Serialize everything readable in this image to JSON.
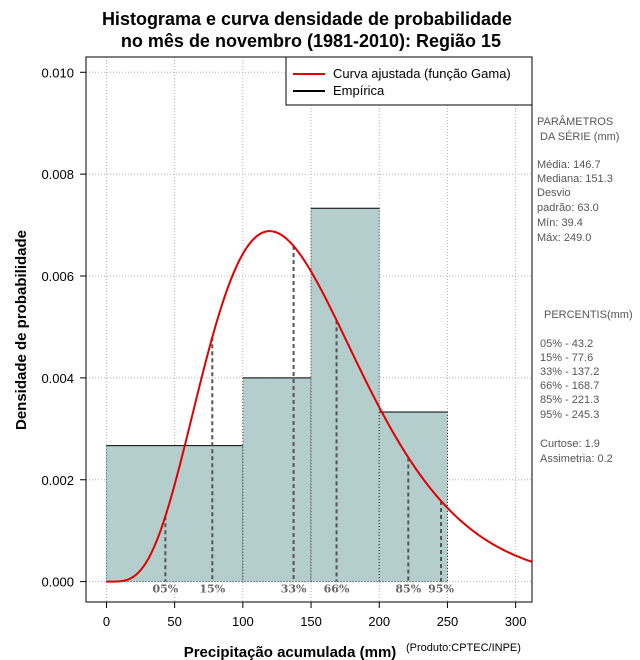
{
  "chart_data": {
    "type": "bar",
    "title_line1": "Histograma e curva densidade de probabilidade",
    "title_line2": "no mês de novembro (1981-2010): Região 15",
    "xlabel": "Precipitação acumulada (mm)",
    "ylabel": "Densidade de probabilidade",
    "credit": "(Produto:CPTEC/INPE)",
    "xlim": [
      -15,
      312
    ],
    "ylim": [
      -0.0004,
      0.0103
    ],
    "x_ticks": [
      0,
      50,
      100,
      150,
      200,
      250,
      300
    ],
    "y_ticks": [
      0.0,
      0.002,
      0.004,
      0.006,
      0.008,
      0.01
    ],
    "y_tick_labels": [
      "0.000",
      "0.002",
      "0.004",
      "0.006",
      "0.008",
      "0.010"
    ],
    "grid": true,
    "bins": [
      {
        "start": 0,
        "end": 100,
        "density": 0.00267
      },
      {
        "start": 100,
        "end": 150,
        "density": 0.004
      },
      {
        "start": 150,
        "end": 200,
        "density": 0.00733
      },
      {
        "start": 200,
        "end": 250,
        "density": 0.00333
      }
    ],
    "gamma_fit": {
      "mean": 146.7,
      "sd": 63.0
    },
    "percentile_lines": [
      {
        "label": "05%",
        "value": 43.2
      },
      {
        "label": "15%",
        "value": 77.6
      },
      {
        "label": "33%",
        "value": 137.2
      },
      {
        "label": "66%",
        "value": 168.7
      },
      {
        "label": "85%",
        "value": 221.3
      },
      {
        "label": "95%",
        "value": 245.3
      }
    ],
    "legend": [
      {
        "label": "Curva ajustada (função Gama)",
        "color": "#e00000"
      },
      {
        "label": "Empírica",
        "color": "#000000"
      }
    ],
    "legend_position": "top-right",
    "colors": {
      "bar_fill": "#b4cdcd",
      "curve": "#e00000",
      "grid": "#b0b0b0",
      "percentile": "#555555"
    }
  },
  "side_panel": {
    "params_title_1": "PARÂMETROS",
    "params_title_2": "DA SÉRIE (mm)",
    "media": "Média:  146.7",
    "mediana": "Mediana:  151.3",
    "desvio_1": "Desvio",
    "desvio_2": "padrão:  63.0",
    "min": "Mín:  39.4",
    "max": "Máx:  249.0",
    "percentis_title": "PERCENTIS(mm)",
    "p05": "05% -  43.2",
    "p15": "15% -  77.6",
    "p33": "33% -  137.2",
    "p66": "66% -  168.7",
    "p85": "85% -  221.3",
    "p95": "95% -  245.3",
    "curtose": "Curtose:  1.9",
    "assimetria": "Assimetria:  0.2"
  }
}
